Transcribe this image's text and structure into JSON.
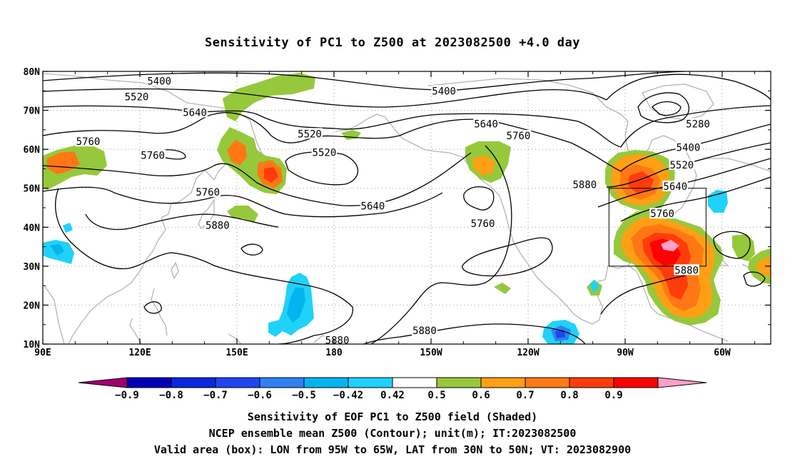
{
  "title": "Sensitivity of PC1 to Z500 at 2023082500 +4.0 day",
  "map": {
    "extent": {
      "lon_min": 90,
      "lon_max": 315,
      "lat_min": 10,
      "lat_max": 80
    },
    "lat_ticks": [
      {
        "lat": 80,
        "label": "80N"
      },
      {
        "lat": 70,
        "label": "70N"
      },
      {
        "lat": 60,
        "label": "60N"
      },
      {
        "lat": 50,
        "label": "50N"
      },
      {
        "lat": 40,
        "label": "40N"
      },
      {
        "lat": 30,
        "label": "30N"
      },
      {
        "lat": 20,
        "label": "20N"
      },
      {
        "lat": 10,
        "label": "10N"
      }
    ],
    "lon_ticks": [
      {
        "lon": 90,
        "label": "90E"
      },
      {
        "lon": 120,
        "label": "120E"
      },
      {
        "lon": 150,
        "label": "150E"
      },
      {
        "lon": 180,
        "label": "180"
      },
      {
        "lon": 210,
        "label": "150W"
      },
      {
        "lon": 240,
        "label": "120W"
      },
      {
        "lon": 270,
        "label": "90W"
      },
      {
        "lon": 300,
        "label": "60W"
      }
    ],
    "valid_box": {
      "lon_west": 265,
      "lon_east": 295,
      "lat_south": 30,
      "lat_north": 50
    },
    "contour_labels": [
      {
        "text": "5400",
        "lon": 126,
        "lat": 77.5
      },
      {
        "text": "5520",
        "lon": 119,
        "lat": 73.5
      },
      {
        "text": "5640",
        "lon": 137,
        "lat": 69.5
      },
      {
        "text": "5760",
        "lon": 104,
        "lat": 62
      },
      {
        "text": "5760",
        "lon": 124,
        "lat": 58.5
      },
      {
        "text": "5520",
        "lon": 172.5,
        "lat": 64
      },
      {
        "text": "5520",
        "lon": 177,
        "lat": 59.2
      },
      {
        "text": "5760",
        "lon": 141,
        "lat": 49
      },
      {
        "text": "5880",
        "lon": 144,
        "lat": 40.5
      },
      {
        "text": "5640",
        "lon": 192,
        "lat": 45.5
      },
      {
        "text": "5400",
        "lon": 214,
        "lat": 75
      },
      {
        "text": "5640",
        "lon": 227,
        "lat": 66.5
      },
      {
        "text": "5760",
        "lon": 237,
        "lat": 63.5
      },
      {
        "text": "5760",
        "lon": 226,
        "lat": 41
      },
      {
        "text": "5880",
        "lon": 257.5,
        "lat": 51
      },
      {
        "text": "5880",
        "lon": 208,
        "lat": 13.5
      },
      {
        "text": "5880",
        "lon": 181,
        "lat": 11
      },
      {
        "text": "5280",
        "lon": 292.5,
        "lat": 66.5
      },
      {
        "text": "5400",
        "lon": 289.5,
        "lat": 60.5
      },
      {
        "text": "5520",
        "lon": 287.5,
        "lat": 56
      },
      {
        "text": "5640",
        "lon": 285.5,
        "lat": 50.5
      },
      {
        "text": "5760",
        "lon": 281.5,
        "lat": 43.5
      },
      {
        "text": "5880",
        "lon": 289,
        "lat": 29
      }
    ]
  },
  "colorbar": {
    "colors": [
      "#a0006e",
      "#0000b4",
      "#0a28dc",
      "#1e46f0",
      "#2f80f2",
      "#05b4ef",
      "#1ed2fa",
      "#ffffff",
      "#96c83c",
      "#ffa014",
      "#ff7814",
      "#ff3c0a",
      "#ff0000",
      "#ffa0c8"
    ],
    "labels": [
      "-0.9",
      "-0.8",
      "-0.7",
      "-0.6",
      "-0.5",
      "-0.42",
      "0.42",
      "0.5",
      "0.6",
      "0.7",
      "0.8",
      "0.9"
    ]
  },
  "captions": [
    "Sensitivity of EOF PC1 to Z500 field (Shaded)",
    "NCEP ensemble mean Z500 (Contour); unit(m); IT:2023082500",
    "Valid area (box): LON from 95W to 65W, LAT from 30N to 50N; VT: 2023082900"
  ]
}
